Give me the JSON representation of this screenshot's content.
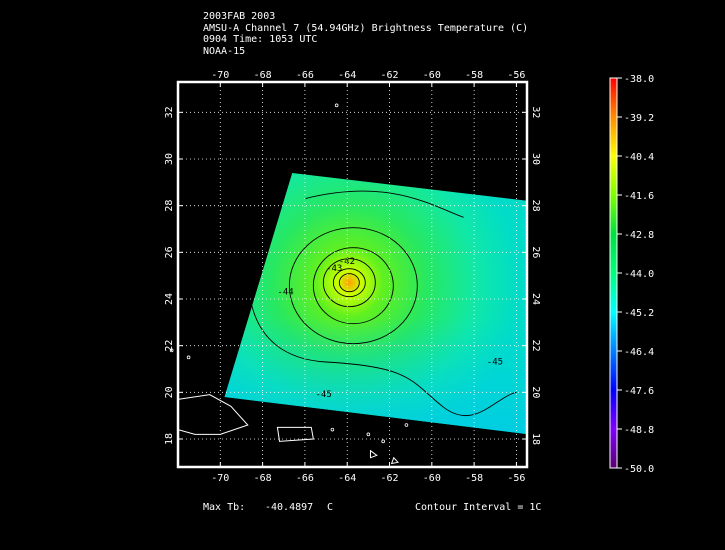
{
  "header": {
    "line1": "2003FAB 2003",
    "line2": "AMSU-A Channel 7 (54.94GHz) Brightness Temperature (C)",
    "line3": "0904 Time: 1053 UTC",
    "line4": "NOAA-15"
  },
  "footer": {
    "max_label": "Max Tb:",
    "max_value": "-40.4897",
    "max_unit": "C",
    "contour_interval": "Contour Interval = 1C"
  },
  "map": {
    "lon_ticks": [
      -70,
      -68,
      -66,
      -64,
      -62,
      -60,
      -58,
      -56
    ],
    "lat_ticks": [
      18,
      20,
      22,
      24,
      26,
      28,
      30,
      32
    ],
    "lon_range": [
      -72,
      -55.5
    ],
    "lat_range": [
      16.8,
      33.3
    ],
    "contour_labels": [
      "-43",
      "-42",
      "-44",
      "-45",
      "-45"
    ],
    "storm_center": {
      "lon": -63.9,
      "lat": 24.7
    },
    "grid": true,
    "projection": "cylindrical"
  },
  "colorbar": {
    "ticks": [
      "-38.0",
      "-39.2",
      "-40.4",
      "-41.6",
      "-42.8",
      "-44.0",
      "-45.2",
      "-46.4",
      "-47.6",
      "-48.8",
      "-50.0"
    ],
    "colors": [
      "#ff0000",
      "#ff8c00",
      "#ffff00",
      "#7fff00",
      "#00e040",
      "#00ff7f",
      "#00ffff",
      "#0080ff",
      "#0000ff",
      "#8000ff",
      "#5a0070"
    ]
  }
}
